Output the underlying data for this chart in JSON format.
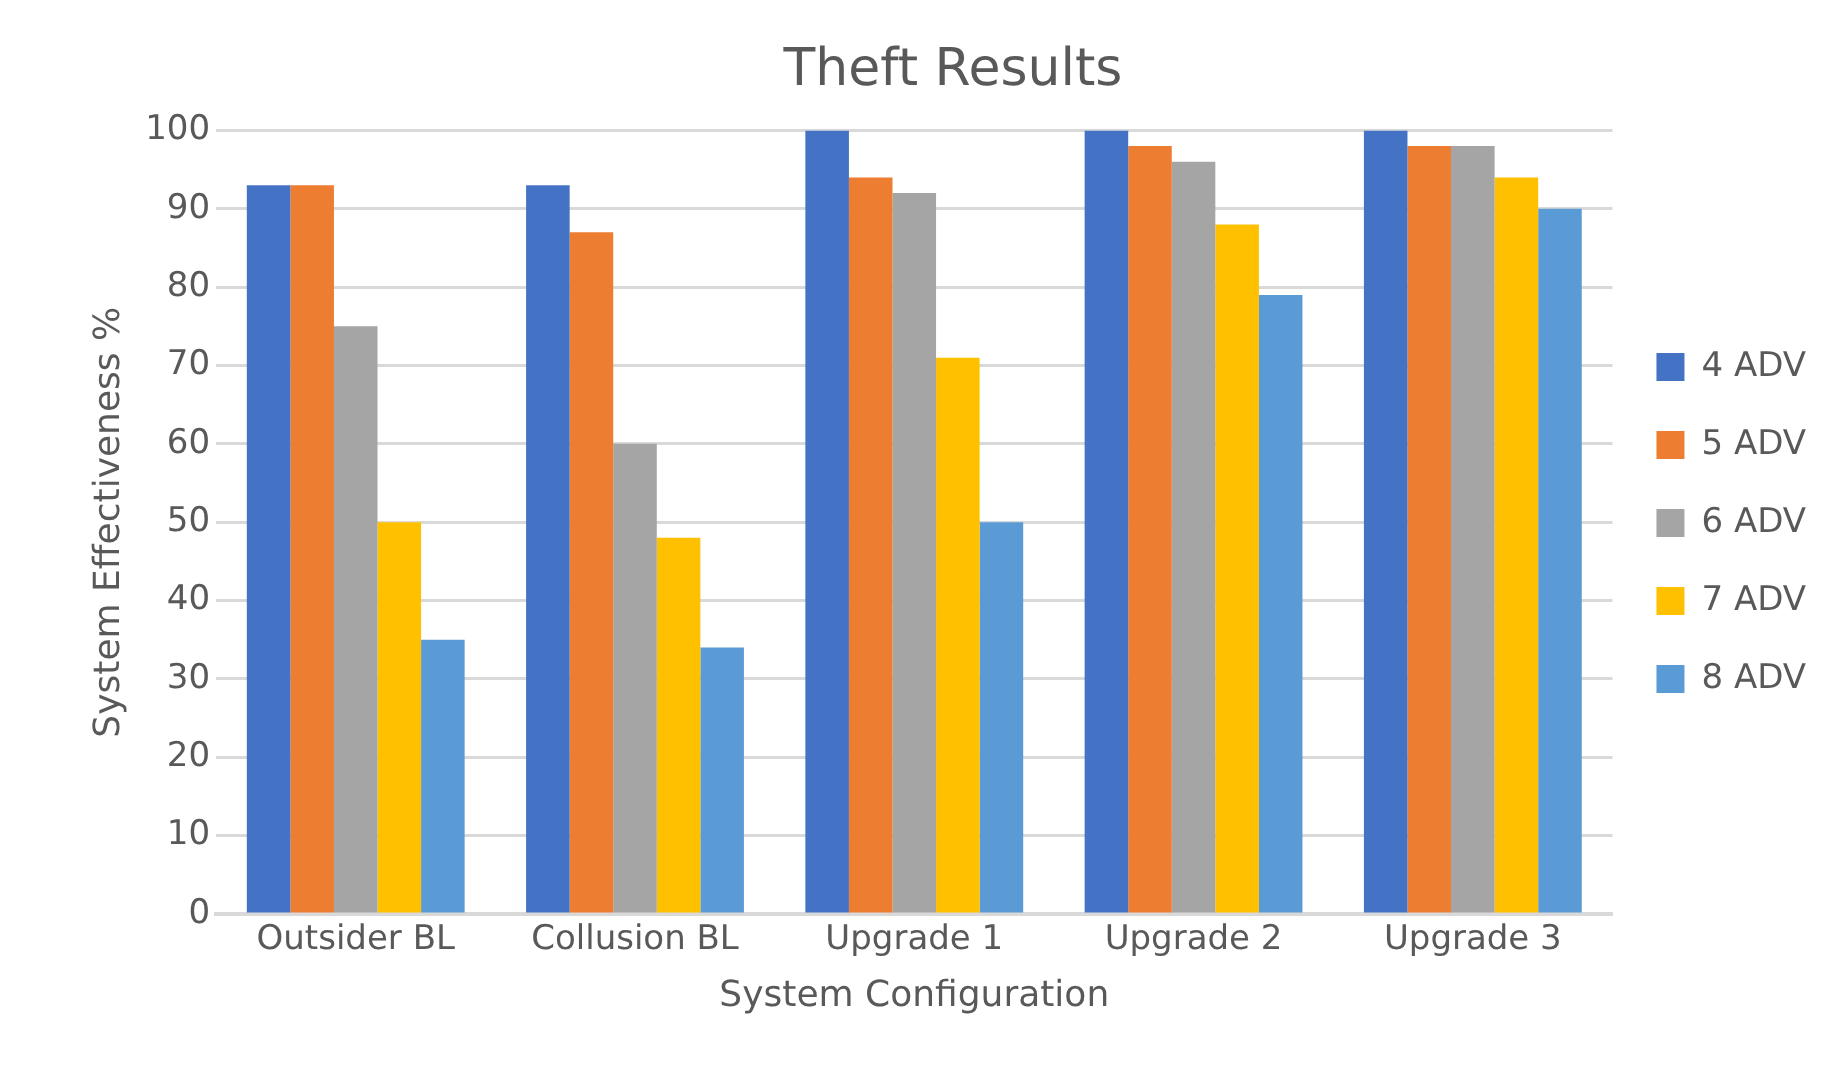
{
  "chart_data": {
    "type": "bar",
    "title": "Theft Results",
    "xlabel": "System Configuration",
    "ylabel": "System Effectiveness %",
    "categories": [
      "Outsider BL",
      "Collusion BL",
      "Upgrade 1",
      "Upgrade 2",
      "Upgrade 3"
    ],
    "series": [
      {
        "name": "4 ADV",
        "color": "#4472c4",
        "values": [
          93,
          93,
          100,
          100,
          100
        ]
      },
      {
        "name": "5 ADV",
        "color": "#ed7d31",
        "values": [
          93,
          87,
          94,
          98,
          98
        ]
      },
      {
        "name": "6 ADV",
        "color": "#a5a5a5",
        "values": [
          75,
          60,
          92,
          96,
          98
        ]
      },
      {
        "name": "7 ADV",
        "color": "#ffc000",
        "values": [
          50,
          48,
          71,
          88,
          94
        ]
      },
      {
        "name": "8 ADV",
        "color": "#5b9bd5",
        "values": [
          35,
          34,
          50,
          79,
          90
        ]
      }
    ],
    "ylim": [
      0,
      100
    ],
    "yticks": [
      0,
      10,
      20,
      30,
      40,
      50,
      60,
      70,
      80,
      90,
      100
    ],
    "grid": "y",
    "legend": "right"
  }
}
